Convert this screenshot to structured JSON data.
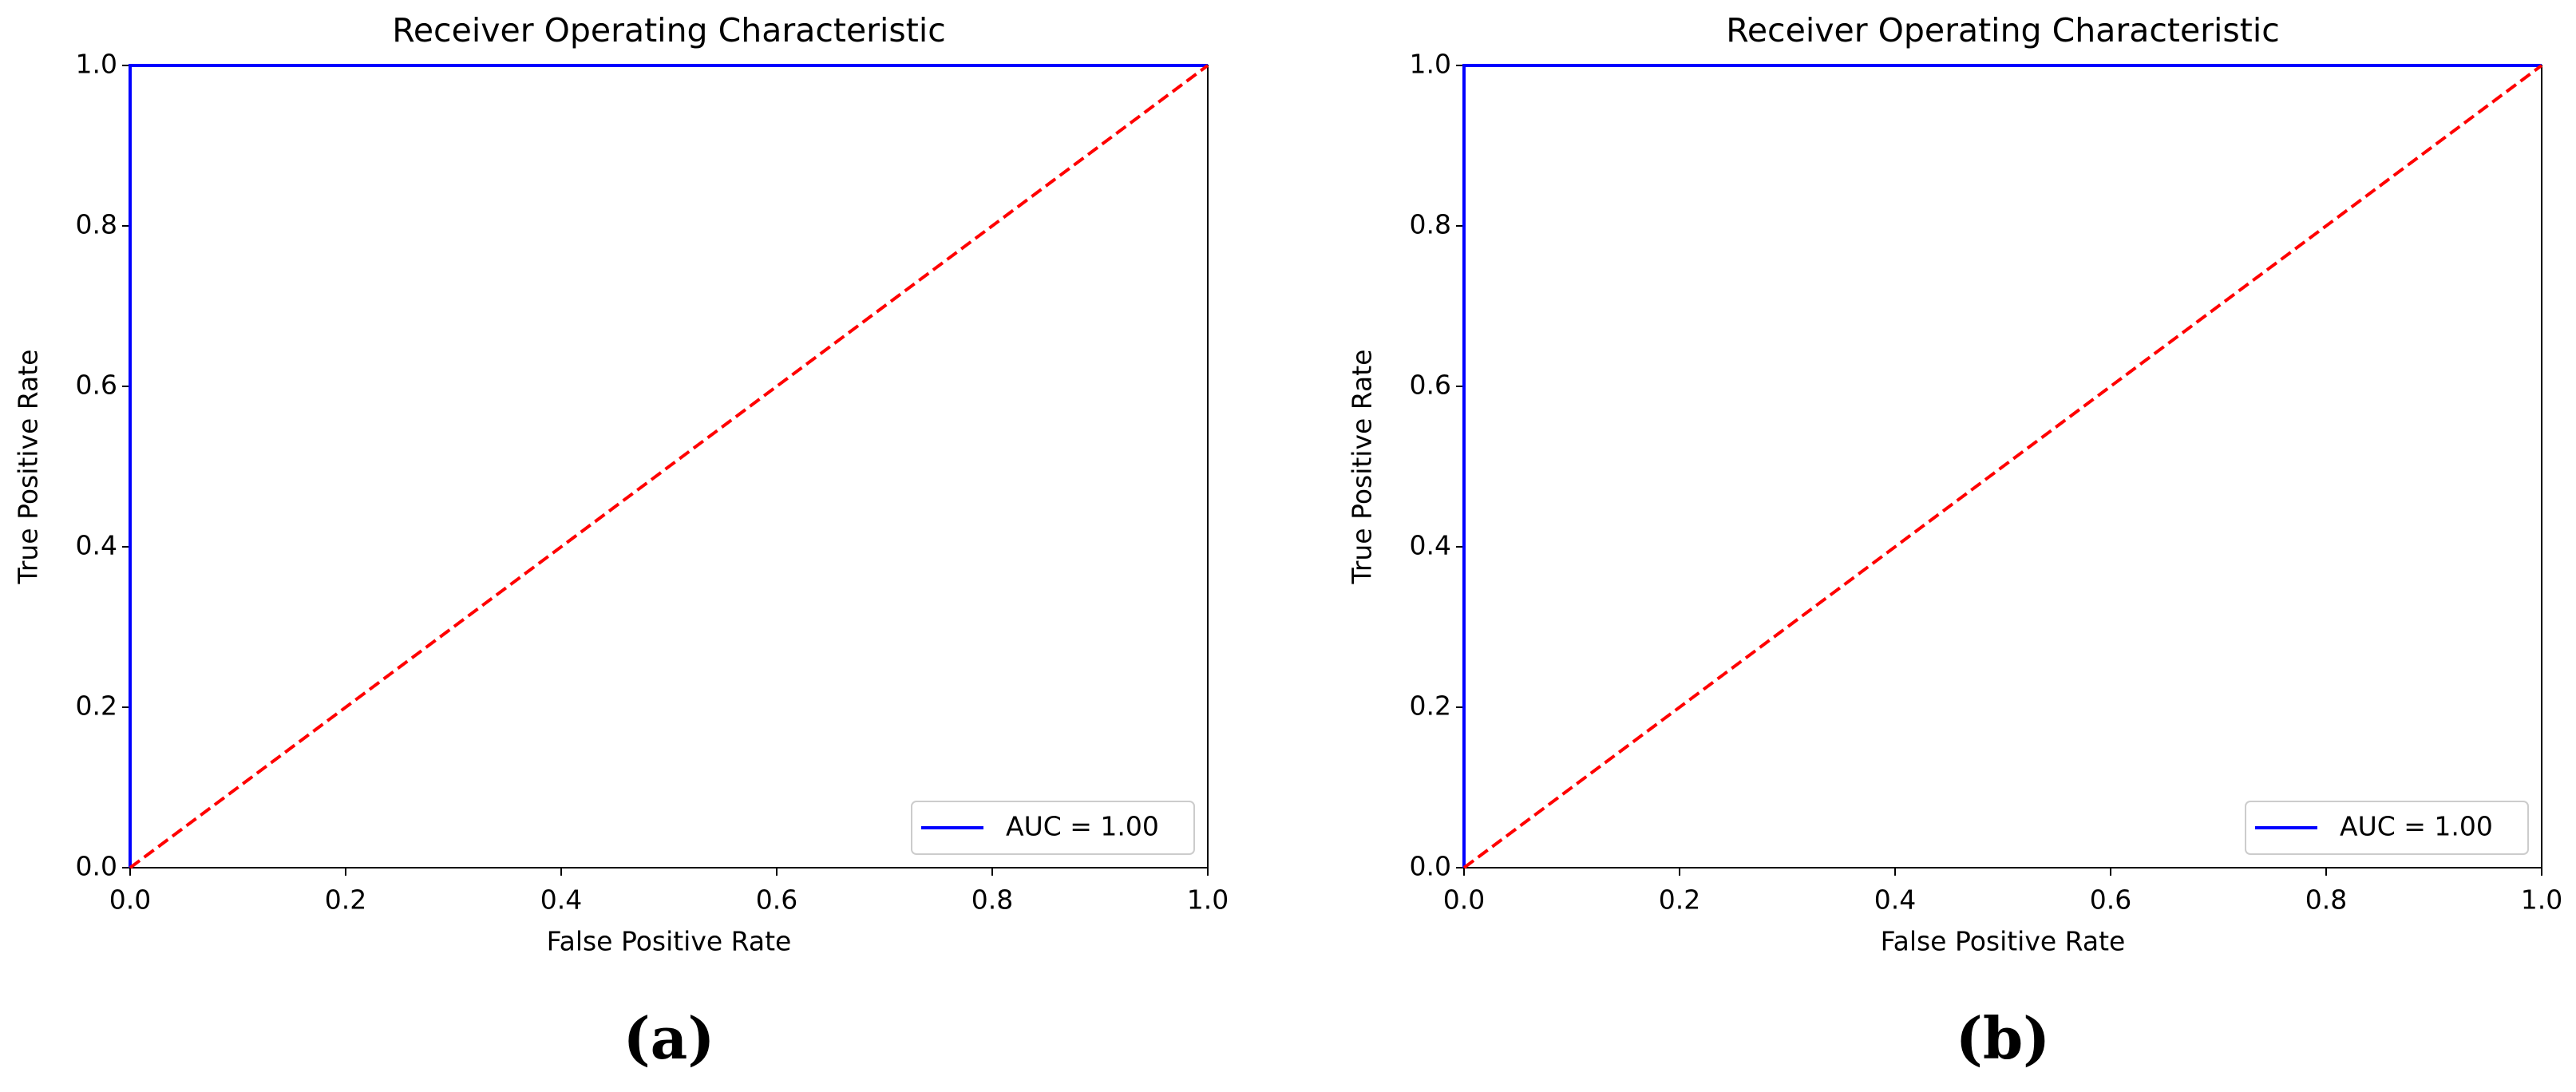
{
  "chart_data": [
    {
      "type": "line",
      "title": "Receiver Operating Characteristic",
      "xlabel": "False Positive Rate",
      "ylabel": "True Positive Rate",
      "caption": "(a)",
      "xlim": [
        0,
        1
      ],
      "ylim": [
        0,
        1
      ],
      "xticks": [
        {
          "value": 0,
          "label": "0.0"
        },
        0.2,
        0.4,
        0.6,
        0.8,
        {
          "value": 1,
          "label": "1.0"
        }
      ],
      "yticks": [
        {
          "value": 0,
          "label": "0.0"
        },
        0.2,
        0.4,
        0.6,
        0.8,
        {
          "value": 1,
          "label": "1.0"
        }
      ],
      "legend": "lower right",
      "series": [
        {
          "name": "AUC = 1.00",
          "color": "#0000ff",
          "x": [
            0,
            0,
            1
          ],
          "values": [
            0,
            1,
            1
          ]
        },
        {
          "color": "#ff0000",
          "dashed": true,
          "x": [
            0,
            1
          ],
          "values": [
            0,
            1
          ]
        }
      ]
    },
    {
      "type": "line",
      "title": "Receiver Operating Characteristic",
      "xlabel": "False Positive Rate",
      "ylabel": "True Positive Rate",
      "caption": "(b)",
      "xlim": [
        0,
        1
      ],
      "ylim": [
        0,
        1
      ],
      "xticks": [
        {
          "value": 0,
          "label": "0.0"
        },
        0.2,
        0.4,
        0.6,
        0.8,
        {
          "value": 1,
          "label": "1.0"
        }
      ],
      "yticks": [
        {
          "value": 0,
          "label": "0.0"
        },
        0.2,
        0.4,
        0.6,
        0.8,
        {
          "value": 1,
          "label": "1.0"
        }
      ],
      "legend": "lower right",
      "series": [
        {
          "name": "AUC = 1.00",
          "color": "#0000ff",
          "x": [
            0,
            0,
            0.03,
            1
          ],
          "values": [
            0,
            1,
            1,
            1
          ]
        },
        {
          "color": "#ff0000",
          "dashed": true,
          "x": [
            0,
            1
          ],
          "values": [
            0,
            1
          ]
        }
      ]
    }
  ]
}
